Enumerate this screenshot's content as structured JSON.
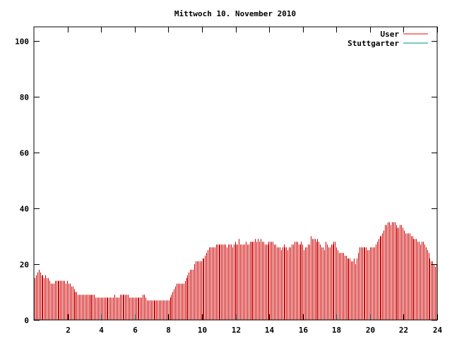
{
  "chart_data": {
    "type": "bar",
    "title": "Mittwoch 10. November 2010",
    "xlabel": "",
    "ylabel": "",
    "xlim": [
      0,
      24
    ],
    "ylim": [
      0,
      105
    ],
    "xticks": [
      2,
      4,
      6,
      8,
      10,
      12,
      14,
      16,
      18,
      20,
      22,
      24
    ],
    "yticks": [
      0,
      20,
      40,
      60,
      80,
      100
    ],
    "grid": false,
    "legend_position": "top-right",
    "series": [
      {
        "name": "User",
        "color": "#ff0000",
        "bar_color": "#cc0000",
        "values": [
          15,
          16,
          17,
          18,
          17,
          16,
          16,
          15,
          16,
          15,
          15,
          14,
          13,
          13,
          13,
          14,
          14,
          14,
          14,
          14,
          14,
          14,
          14,
          13,
          14,
          13,
          13,
          12,
          12,
          11,
          10,
          10,
          9,
          9,
          9,
          9,
          9,
          9,
          9,
          9,
          9,
          9,
          9,
          9,
          9,
          8,
          8,
          8,
          8,
          8,
          8,
          8,
          8,
          8,
          8,
          8,
          8,
          8,
          8,
          9,
          8,
          8,
          8,
          9,
          9,
          9,
          9,
          9,
          9,
          9,
          8,
          8,
          8,
          8,
          8,
          8,
          8,
          8,
          8,
          8,
          9,
          9,
          8,
          7,
          7,
          7,
          7,
          7,
          7,
          7,
          7,
          7,
          7,
          7,
          7,
          7,
          7,
          7,
          7,
          7,
          8,
          9,
          10,
          11,
          12,
          13,
          13,
          13,
          13,
          13,
          13,
          14,
          15,
          16,
          17,
          18,
          18,
          18,
          20,
          21,
          21,
          21,
          21,
          21,
          22,
          22,
          23,
          24,
          25,
          26,
          26,
          26,
          26,
          26,
          27,
          27,
          27,
          27,
          27,
          27,
          27,
          27,
          26,
          27,
          27,
          27,
          26,
          27,
          28,
          27,
          27,
          29,
          27,
          27,
          27,
          27,
          28,
          27,
          27,
          28,
          28,
          28,
          28,
          29,
          28,
          29,
          28,
          29,
          28,
          28,
          27,
          27,
          27,
          28,
          28,
          28,
          28,
          27,
          27,
          26,
          26,
          26,
          25,
          26,
          27,
          26,
          26,
          25,
          26,
          26,
          27,
          27,
          28,
          28,
          28,
          27,
          27,
          28,
          27,
          25,
          26,
          26,
          27,
          27,
          30,
          29,
          29,
          29,
          28,
          29,
          28,
          27,
          26,
          26,
          25,
          28,
          27,
          26,
          26,
          27,
          27,
          28,
          28,
          26,
          25,
          24,
          24,
          24,
          24,
          23,
          23,
          22,
          22,
          22,
          21,
          21,
          22,
          20,
          22,
          24,
          26,
          26,
          26,
          26,
          26,
          26,
          25,
          25,
          26,
          26,
          26,
          26,
          27,
          28,
          29,
          30,
          30,
          31,
          32,
          34,
          34,
          35,
          35,
          34,
          35,
          35,
          35,
          34,
          33,
          33,
          34,
          34,
          33,
          32,
          31,
          31,
          31,
          31,
          30,
          30,
          29,
          29,
          29,
          28,
          28,
          27,
          28,
          28,
          27,
          26,
          25,
          24,
          22,
          21,
          21,
          20,
          19,
          20
        ]
      },
      {
        "name": "Stuttgarter",
        "color": "#008b8b",
        "values": []
      }
    ]
  }
}
